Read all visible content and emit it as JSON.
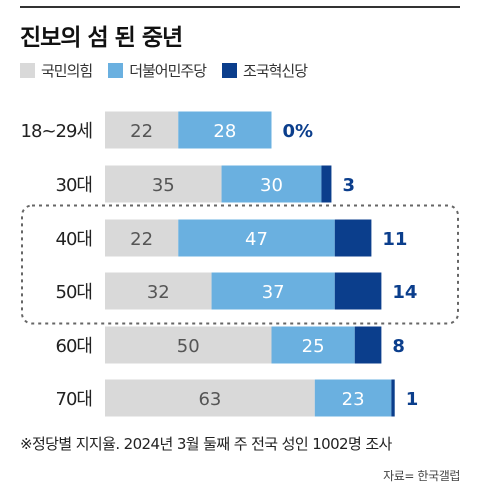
{
  "title": "진보의 섬 된 중년",
  "colors": {
    "gray": "#d9d9d9",
    "light_blue": "#6ab0e0",
    "navy": "#0b3e8c",
    "gray_label": "#555555",
    "highlight_border": "#666666"
  },
  "legend": [
    {
      "label": "국민의힘",
      "color": "#d9d9d9"
    },
    {
      "label": "더불어민주당",
      "color": "#6ab0e0"
    },
    {
      "label": "조국혁신당",
      "color": "#0b3e8c"
    }
  ],
  "chart_data": {
    "type": "bar",
    "orientation": "horizontal",
    "stacked": true,
    "unit": "%",
    "xlim": [
      0,
      100
    ],
    "categories": [
      "18~29세",
      "30대",
      "40대",
      "50대",
      "60대",
      "70대"
    ],
    "series": [
      {
        "name": "국민의힘",
        "values": [
          22,
          35,
          22,
          32,
          50,
          63
        ]
      },
      {
        "name": "더불어민주당",
        "values": [
          28,
          30,
          47,
          37,
          25,
          23
        ]
      },
      {
        "name": "조국혁신당",
        "values": [
          0,
          3,
          11,
          14,
          8,
          1
        ]
      }
    ],
    "value_labels": {
      "국민의힘": [
        "22",
        "35",
        "22",
        "32",
        "50",
        "63"
      ],
      "더불어민주당": [
        "28",
        "30",
        "47",
        "37",
        "25",
        "23"
      ],
      "조국혁신당": [
        "0%",
        "3",
        "11",
        "14",
        "8",
        "1"
      ]
    },
    "highlighted_categories": [
      "40대",
      "50대"
    ]
  },
  "footnote": "※정당별 지지율. 2024년 3월 둘째 주 전국 성인 1002명 조사",
  "source": "자료= 한국갤럽"
}
